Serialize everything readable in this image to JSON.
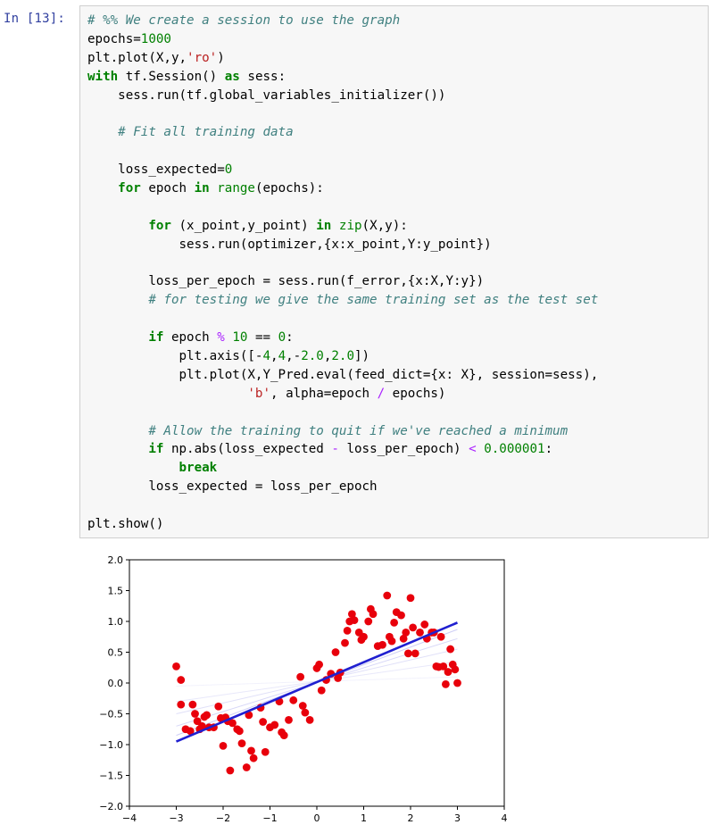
{
  "prompt": "In [13]:",
  "code_lines": [
    [
      {
        "t": "cm",
        "v": "# %% We create a session to use the graph"
      }
    ],
    [
      {
        "t": "",
        "v": "epochs="
      },
      {
        "t": "nm",
        "v": "1000"
      }
    ],
    [
      {
        "t": "",
        "v": "plt.plot(X,y,"
      },
      {
        "t": "st",
        "v": "'ro'"
      },
      {
        "t": "",
        "v": ")"
      }
    ],
    [
      {
        "t": "kw",
        "v": "with"
      },
      {
        "t": "",
        "v": " tf.Session() "
      },
      {
        "t": "kw",
        "v": "as"
      },
      {
        "t": "",
        "v": " sess:"
      }
    ],
    [
      {
        "t": "",
        "v": "    sess.run(tf.global_variables_initializer())"
      }
    ],
    [
      {
        "t": "",
        "v": ""
      }
    ],
    [
      {
        "t": "",
        "v": "    "
      },
      {
        "t": "cm",
        "v": "# Fit all training data"
      }
    ],
    [
      {
        "t": "",
        "v": ""
      }
    ],
    [
      {
        "t": "",
        "v": "    loss_expected="
      },
      {
        "t": "nm",
        "v": "0"
      }
    ],
    [
      {
        "t": "",
        "v": "    "
      },
      {
        "t": "kw",
        "v": "for"
      },
      {
        "t": "",
        "v": " epoch "
      },
      {
        "t": "kw",
        "v": "in"
      },
      {
        "t": "",
        "v": " "
      },
      {
        "t": "bi",
        "v": "range"
      },
      {
        "t": "",
        "v": "(epochs):"
      }
    ],
    [
      {
        "t": "",
        "v": ""
      }
    ],
    [
      {
        "t": "",
        "v": "        "
      },
      {
        "t": "kw",
        "v": "for"
      },
      {
        "t": "",
        "v": " (x_point,y_point) "
      },
      {
        "t": "kw",
        "v": "in"
      },
      {
        "t": "",
        "v": " "
      },
      {
        "t": "bi",
        "v": "zip"
      },
      {
        "t": "",
        "v": "(X,y):"
      }
    ],
    [
      {
        "t": "",
        "v": "            sess.run(optimizer,{x:x_point,Y:y_point})"
      }
    ],
    [
      {
        "t": "",
        "v": ""
      }
    ],
    [
      {
        "t": "",
        "v": "        loss_per_epoch = sess.run(f_error,{x:X,Y:y})"
      }
    ],
    [
      {
        "t": "",
        "v": "        "
      },
      {
        "t": "cm",
        "v": "# for testing we give the same training set as the test set"
      }
    ],
    [
      {
        "t": "",
        "v": ""
      }
    ],
    [
      {
        "t": "",
        "v": "        "
      },
      {
        "t": "kw",
        "v": "if"
      },
      {
        "t": "",
        "v": " epoch "
      },
      {
        "t": "op",
        "v": "%"
      },
      {
        "t": "",
        "v": " "
      },
      {
        "t": "nm",
        "v": "10"
      },
      {
        "t": "",
        "v": " == "
      },
      {
        "t": "nm",
        "v": "0"
      },
      {
        "t": "",
        "v": ":"
      }
    ],
    [
      {
        "t": "",
        "v": "            plt.axis([-"
      },
      {
        "t": "nm",
        "v": "4"
      },
      {
        "t": "",
        "v": ","
      },
      {
        "t": "nm",
        "v": "4"
      },
      {
        "t": "",
        "v": ",-"
      },
      {
        "t": "nm",
        "v": "2.0"
      },
      {
        "t": "",
        "v": ","
      },
      {
        "t": "nm",
        "v": "2.0"
      },
      {
        "t": "",
        "v": "])"
      }
    ],
    [
      {
        "t": "",
        "v": "            plt.plot(X,Y_Pred.eval(feed_dict={x: X}, session=sess),"
      }
    ],
    [
      {
        "t": "",
        "v": "                     "
      },
      {
        "t": "st",
        "v": "'b'"
      },
      {
        "t": "",
        "v": ", alpha=epoch "
      },
      {
        "t": "op",
        "v": "/"
      },
      {
        "t": "",
        "v": " epochs)"
      }
    ],
    [
      {
        "t": "",
        "v": ""
      }
    ],
    [
      {
        "t": "",
        "v": "        "
      },
      {
        "t": "cm",
        "v": "# Allow the training to quit if we've reached a minimum"
      }
    ],
    [
      {
        "t": "",
        "v": "        "
      },
      {
        "t": "kw",
        "v": "if"
      },
      {
        "t": "",
        "v": " np.abs(loss_expected "
      },
      {
        "t": "op",
        "v": "-"
      },
      {
        "t": "",
        "v": " loss_per_epoch) "
      },
      {
        "t": "op",
        "v": "<"
      },
      {
        "t": "",
        "v": " "
      },
      {
        "t": "nm",
        "v": "0.000001"
      },
      {
        "t": "",
        "v": ":"
      }
    ],
    [
      {
        "t": "",
        "v": "            "
      },
      {
        "t": "kw",
        "v": "break"
      }
    ],
    [
      {
        "t": "",
        "v": "        loss_expected = loss_per_epoch"
      }
    ],
    [
      {
        "t": "",
        "v": ""
      }
    ],
    [
      {
        "t": "",
        "v": "plt.show()"
      }
    ]
  ],
  "colors": {
    "prompt": "#303f9f",
    "points": "#e8000b",
    "fit_line": "#2020d0",
    "cell_bg": "#f7f7f7",
    "cell_border": "#cfcfcf"
  },
  "chart_data": {
    "type": "scatter",
    "xlim": [
      -4,
      4
    ],
    "ylim": [
      -2.0,
      2.0
    ],
    "x_ticks": [
      "−4",
      "−3",
      "−2",
      "−1",
      "0",
      "1",
      "2",
      "3",
      "4"
    ],
    "y_ticks": [
      "2.0",
      "1.5",
      "1.0",
      "0.5",
      "0.0",
      "−0.5",
      "−1.0",
      "−1.5",
      "−2.0"
    ],
    "x_tick_values": [
      -4,
      -3,
      -2,
      -1,
      0,
      1,
      2,
      3,
      4
    ],
    "y_tick_values": [
      2.0,
      1.5,
      1.0,
      0.5,
      0.0,
      -0.5,
      -1.0,
      -1.5,
      -2.0
    ],
    "points": [
      [
        -3.0,
        0.27
      ],
      [
        -2.9,
        0.05
      ],
      [
        -2.9,
        -0.35
      ],
      [
        -2.8,
        -0.75
      ],
      [
        -2.7,
        -0.78
      ],
      [
        -2.65,
        -0.35
      ],
      [
        -2.6,
        -0.5
      ],
      [
        -2.55,
        -0.62
      ],
      [
        -2.5,
        -0.75
      ],
      [
        -2.45,
        -0.7
      ],
      [
        -2.4,
        -0.55
      ],
      [
        -2.35,
        -0.52
      ],
      [
        -2.3,
        -0.72
      ],
      [
        -2.2,
        -0.72
      ],
      [
        -2.1,
        -0.38
      ],
      [
        -2.05,
        -0.57
      ],
      [
        -2.0,
        -1.02
      ],
      [
        -1.95,
        -0.56
      ],
      [
        -1.9,
        -0.62
      ],
      [
        -1.85,
        -1.42
      ],
      [
        -1.8,
        -0.65
      ],
      [
        -1.7,
        -0.75
      ],
      [
        -1.65,
        -0.78
      ],
      [
        -1.6,
        -0.98
      ],
      [
        -1.5,
        -1.37
      ],
      [
        -1.45,
        -0.52
      ],
      [
        -1.4,
        -1.1
      ],
      [
        -1.35,
        -1.22
      ],
      [
        -1.2,
        -0.4
      ],
      [
        -1.15,
        -0.63
      ],
      [
        -1.1,
        -1.12
      ],
      [
        -1.0,
        -0.72
      ],
      [
        -0.9,
        -0.68
      ],
      [
        -0.8,
        -0.3
      ],
      [
        -0.75,
        -0.8
      ],
      [
        -0.7,
        -0.85
      ],
      [
        -0.6,
        -0.6
      ],
      [
        -0.5,
        -0.28
      ],
      [
        -0.35,
        0.1
      ],
      [
        -0.3,
        -0.37
      ],
      [
        -0.25,
        -0.48
      ],
      [
        -0.15,
        -0.6
      ],
      [
        0.0,
        0.24
      ],
      [
        0.05,
        0.3
      ],
      [
        0.1,
        -0.12
      ],
      [
        0.2,
        0.05
      ],
      [
        0.3,
        0.15
      ],
      [
        0.4,
        0.5
      ],
      [
        0.45,
        0.08
      ],
      [
        0.5,
        0.17
      ],
      [
        0.6,
        0.65
      ],
      [
        0.65,
        0.85
      ],
      [
        0.7,
        1.0
      ],
      [
        0.75,
        1.12
      ],
      [
        0.8,
        1.02
      ],
      [
        0.9,
        0.82
      ],
      [
        0.95,
        0.7
      ],
      [
        1.0,
        0.75
      ],
      [
        1.1,
        1.0
      ],
      [
        1.15,
        1.2
      ],
      [
        1.2,
        1.12
      ],
      [
        1.3,
        0.6
      ],
      [
        1.4,
        0.62
      ],
      [
        1.5,
        1.42
      ],
      [
        1.55,
        0.75
      ],
      [
        1.6,
        0.68
      ],
      [
        1.65,
        0.98
      ],
      [
        1.7,
        1.15
      ],
      [
        1.8,
        1.1
      ],
      [
        1.85,
        0.72
      ],
      [
        1.9,
        0.82
      ],
      [
        1.95,
        0.48
      ],
      [
        2.0,
        1.38
      ],
      [
        2.05,
        0.9
      ],
      [
        2.1,
        0.48
      ],
      [
        2.2,
        0.82
      ],
      [
        2.3,
        0.95
      ],
      [
        2.35,
        0.72
      ],
      [
        2.45,
        0.82
      ],
      [
        2.5,
        0.82
      ],
      [
        2.55,
        0.27
      ],
      [
        2.6,
        0.26
      ],
      [
        2.65,
        0.75
      ],
      [
        2.7,
        0.27
      ],
      [
        2.75,
        -0.02
      ],
      [
        2.8,
        0.18
      ],
      [
        2.85,
        0.55
      ],
      [
        2.9,
        0.3
      ],
      [
        2.95,
        0.22
      ],
      [
        3.0,
        0.0
      ]
    ],
    "fit_line": {
      "x": [
        -3.0,
        3.0
      ],
      "y": [
        -0.95,
        0.98
      ]
    },
    "fit_history": [
      {
        "x": [
          -3.0,
          3.0
        ],
        "y": [
          -0.05,
          0.1
        ]
      },
      {
        "x": [
          -3.0,
          3.0
        ],
        "y": [
          -0.3,
          0.35
        ]
      },
      {
        "x": [
          -3.0,
          3.0
        ],
        "y": [
          -0.5,
          0.55
        ]
      },
      {
        "x": [
          -3.0,
          3.0
        ],
        "y": [
          -0.7,
          0.72
        ]
      },
      {
        "x": [
          -3.0,
          3.0
        ],
        "y": [
          -0.85,
          0.87
        ]
      }
    ]
  }
}
